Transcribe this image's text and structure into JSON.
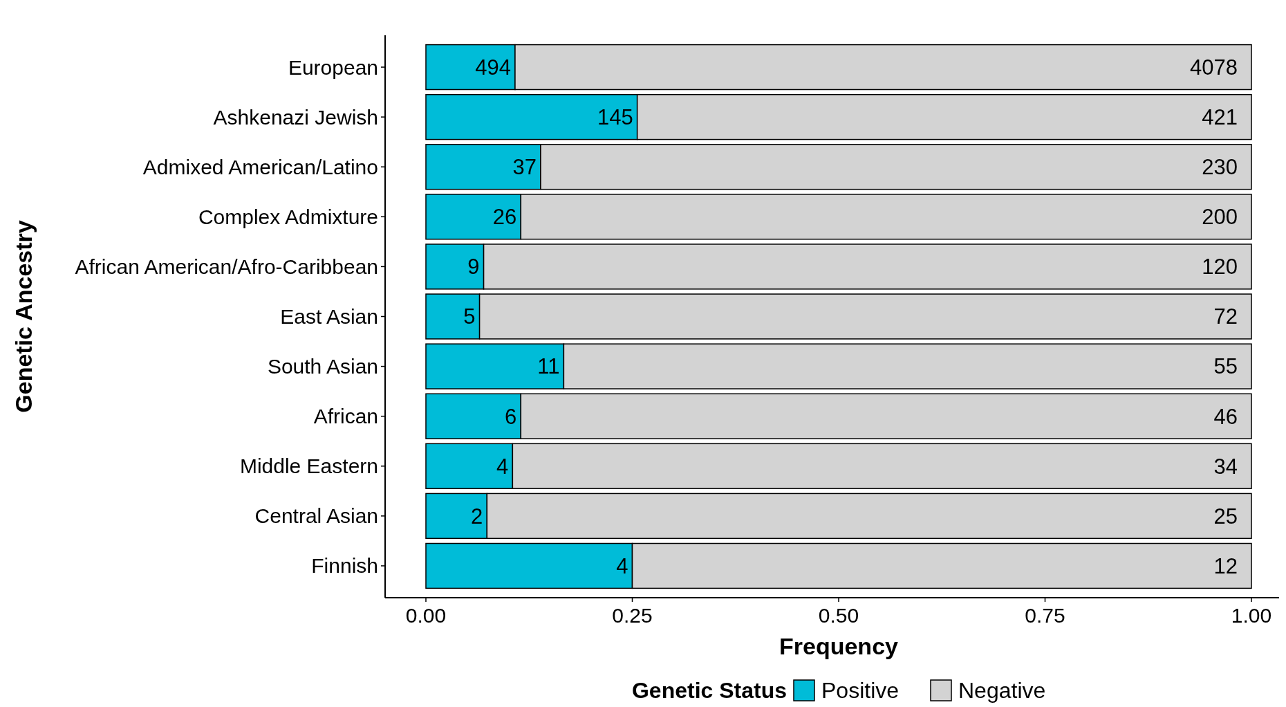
{
  "chart_data": {
    "type": "bar",
    "orientation": "horizontal",
    "stacked": true,
    "xlabel": "Frequency",
    "ylabel": "Genetic Ancestry",
    "legend_title": "Genetic Status",
    "legend": "bottom",
    "grid": false,
    "categories": [
      "European",
      "Ashkenazi Jewish",
      "Admixed American/Latino",
      "Complex Admixture",
      "African American/Afro-Caribbean",
      "East Asian",
      "South Asian",
      "African",
      "Middle Eastern",
      "Central Asian",
      "Finnish"
    ],
    "xlim": [
      0,
      1
    ],
    "xticks": [
      {
        "value": 0,
        "label": "0.00"
      },
      {
        "value": 0.25,
        "label": "0.25"
      },
      {
        "value": 0.5,
        "label": "0.50"
      },
      {
        "value": 0.75,
        "label": "0.75"
      },
      {
        "value": 1,
        "label": "1.00"
      }
    ],
    "series": [
      {
        "name": "Positive",
        "color": "#00bcd8",
        "values": [
          0.108,
          0.256,
          0.139,
          0.115,
          0.07,
          0.065,
          0.167,
          0.115,
          0.105,
          0.074,
          0.25
        ]
      },
      {
        "name": "Negative",
        "color": "#d3d3d3",
        "values": [
          0.892,
          0.744,
          0.861,
          0.885,
          0.93,
          0.935,
          0.833,
          0.885,
          0.895,
          0.926,
          0.75
        ]
      }
    ],
    "annotations": [
      {
        "text": "494",
        "x": 0.108,
        "y": "European"
      },
      {
        "text": "145",
        "x": 0.256,
        "y": "Ashkenazi Jewish"
      },
      {
        "text": "37",
        "x": 0.139,
        "y": "Admixed American/Latino"
      },
      {
        "text": "26",
        "x": 0.115,
        "y": "Complex Admixture"
      },
      {
        "text": "9",
        "x": 0.07,
        "y": "African American/Afro-Caribbean"
      },
      {
        "text": "5",
        "x": 0.065,
        "y": "East Asian"
      },
      {
        "text": "11",
        "x": 0.167,
        "y": "South Asian"
      },
      {
        "text": "6",
        "x": 0.115,
        "y": "African"
      },
      {
        "text": "4",
        "x": 0.105,
        "y": "Middle Eastern"
      },
      {
        "text": "2",
        "x": 0.074,
        "y": "Central Asian"
      },
      {
        "text": "4",
        "x": 0.25,
        "y": "Finnish"
      },
      {
        "text": "4078",
        "x": 1,
        "y": "European"
      },
      {
        "text": "421",
        "x": 1,
        "y": "Ashkenazi Jewish"
      },
      {
        "text": "230",
        "x": 1,
        "y": "Admixed American/Latino"
      },
      {
        "text": "200",
        "x": 1,
        "y": "Complex Admixture"
      },
      {
        "text": "120",
        "x": 1,
        "y": "African American/Afro-Caribbean"
      },
      {
        "text": "72",
        "x": 1,
        "y": "East Asian"
      },
      {
        "text": "55",
        "x": 1,
        "y": "South Asian"
      },
      {
        "text": "46",
        "x": 1,
        "y": "African"
      },
      {
        "text": "34",
        "x": 1,
        "y": "Middle Eastern"
      },
      {
        "text": "25",
        "x": 1,
        "y": "Central Asian"
      },
      {
        "text": "12",
        "x": 1,
        "y": "Finnish"
      }
    ]
  }
}
